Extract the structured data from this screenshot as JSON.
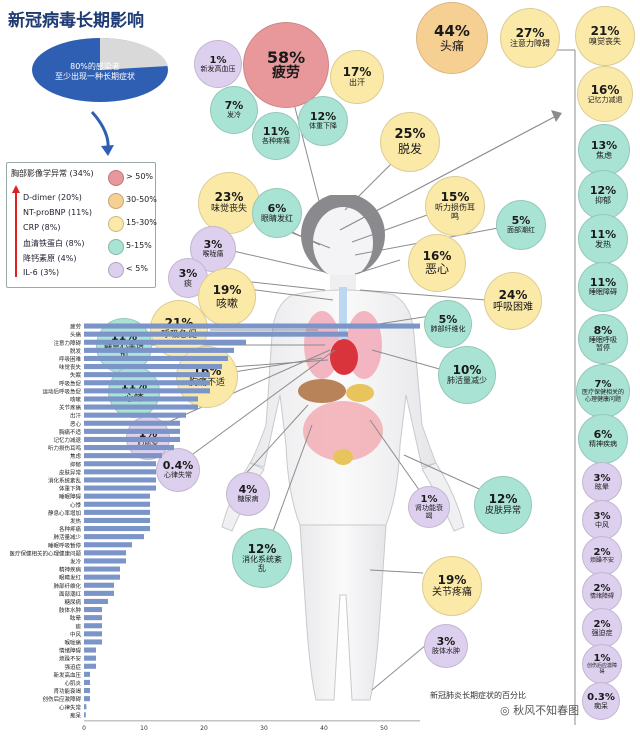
{
  "title": "新冠病毒长期影响",
  "pie": {
    "text_line1": "80%的感染者",
    "text_line2": "至少出现一种长期症状"
  },
  "colors": {
    "red": "#e8989a",
    "orange": "#f6cf92",
    "yellow": "#fbe9a8",
    "green": "#a9e3d4",
    "purple": "#ddd0ee"
  },
  "legend": {
    "title": "胸部影像学异常 (34%)",
    "items": [
      "D-dimer (20%)",
      "NT-proBNP (11%)",
      "CRP (8%)",
      "血清铁蛋白 (8%)",
      "降钙素原 (4%)",
      "IL-6 (3%)"
    ],
    "scale": [
      "> 50%",
      "30-50%",
      "15-30%",
      "5-15%",
      "< 5%"
    ]
  },
  "circles": [
    {
      "pct": "58%",
      "label": "疲劳"
    },
    {
      "pct": "1%",
      "label": "新发高血压"
    },
    {
      "pct": "17%",
      "label": "出汗"
    },
    {
      "pct": "7%",
      "label": "发冷"
    },
    {
      "pct": "11%",
      "label": "各种疼痛"
    },
    {
      "pct": "12%",
      "label": "体重下降"
    },
    {
      "pct": "44%",
      "label": "头痛"
    },
    {
      "pct": "27%",
      "label": "注意力障碍"
    },
    {
      "pct": "21%",
      "label": "嗅觉丧失"
    },
    {
      "pct": "16%",
      "label": "记忆力减退"
    },
    {
      "pct": "25%",
      "label": "脱发"
    },
    {
      "pct": "23%",
      "label": "味觉丧失"
    },
    {
      "pct": "6%",
      "label": "眼睛发红"
    },
    {
      "pct": "15%",
      "label": "听力损伤耳鸣"
    },
    {
      "pct": "5%",
      "label": "面部潮红"
    },
    {
      "pct": "3%",
      "label": "喉咙痛"
    },
    {
      "pct": "16%",
      "label": "恶心"
    },
    {
      "pct": "3%",
      "label": "痰"
    },
    {
      "pct": "19%",
      "label": "咳嗽"
    },
    {
      "pct": "24%",
      "label": "呼吸困难"
    },
    {
      "pct": "21%",
      "label": "呼吸急促"
    },
    {
      "pct": "11%",
      "label": "静息心率增加"
    },
    {
      "pct": "5%",
      "label": "肺部纤维化"
    },
    {
      "pct": "11%",
      "label": "心悸"
    },
    {
      "pct": "16%",
      "label": "胸痛不适"
    },
    {
      "pct": "10%",
      "label": "肺活量减少"
    },
    {
      "pct": "1%",
      "label": "心肌炎"
    },
    {
      "pct": "0.4%",
      "label": "心律失常"
    },
    {
      "pct": "4%",
      "label": "糖尿病"
    },
    {
      "pct": "1%",
      "label": "肾功能衰竭"
    },
    {
      "pct": "12%",
      "label": "皮肤异常"
    },
    {
      "pct": "12%",
      "label": "消化系统紊乱"
    },
    {
      "pct": "19%",
      "label": "关节疼痛"
    },
    {
      "pct": "3%",
      "label": "肢体水肿"
    },
    {
      "pct": "13%",
      "label": "焦虑"
    },
    {
      "pct": "12%",
      "label": "抑郁"
    },
    {
      "pct": "11%",
      "label": "发热"
    },
    {
      "pct": "11%",
      "label": "睡眠障碍"
    },
    {
      "pct": "8%",
      "label": "睡眠呼吸暂停"
    },
    {
      "pct": "7%",
      "label": "医疗保健相关的心理健康问题"
    },
    {
      "pct": "6%",
      "label": "精神疾病"
    },
    {
      "pct": "3%",
      "label": "眩晕"
    },
    {
      "pct": "3%",
      "label": "中风"
    },
    {
      "pct": "2%",
      "label": "烦躁不安"
    },
    {
      "pct": "2%",
      "label": "情绪障碍"
    },
    {
      "pct": "2%",
      "label": "强迫症"
    },
    {
      "pct": "1%",
      "label": "创伤后应激障碍"
    },
    {
      "pct": "0.3%",
      "label": "痴呆"
    }
  ],
  "chart_data": {
    "type": "bar",
    "orientation": "horizontal",
    "categories": [
      "痴呆",
      "心律失常",
      "创伤后应激障碍",
      "肾功能衰竭",
      "心肌炎",
      "新发高血压",
      "强迫症",
      "烦躁不安",
      "情绪障碍",
      "喉咙痛",
      "中风",
      "痰",
      "眩晕",
      "肢体水肿",
      "糖尿病",
      "面部潮红",
      "肺部纤维化",
      "眼睛发红",
      "精神疾病",
      "发冷",
      "医疗保健相关的心理健康问题",
      "睡眠呼吸暂停",
      "肺活量减少",
      "各种疼痛",
      "发热",
      "静息心率增加",
      "心悸",
      "睡眠障碍",
      "体重下降",
      "消化系统紊乱",
      "皮肤异常",
      "抑郁",
      "焦虑",
      "听力损伤耳鸣",
      "记忆力减退",
      "胸痛不适",
      "恶心",
      "出汗",
      "关节疼痛",
      "咳嗽",
      "运动后呼吸急促",
      "呼吸急促",
      "失眠",
      "味觉丧失",
      "呼吸困难",
      "脱发",
      "注意力障碍",
      "头痛",
      "疲劳"
    ],
    "values": [
      0.3,
      0.4,
      1,
      1,
      1,
      1,
      2,
      2,
      2,
      3,
      3,
      3,
      3,
      3,
      4,
      5,
      5,
      6,
      6,
      7,
      7,
      8,
      10,
      11,
      11,
      11,
      11,
      11,
      12,
      12,
      12,
      12,
      13,
      15,
      16,
      16,
      16,
      17,
      19,
      19,
      21,
      21,
      21,
      23,
      24,
      25,
      27,
      44,
      58
    ],
    "xlim": [
      0,
      60
    ],
    "xticks": [
      "0",
      "10",
      "20",
      "30",
      "40",
      "50",
      "60"
    ],
    "title": "新冠肺炎长期症状的百分比"
  },
  "watermark": "秋风不知春图"
}
